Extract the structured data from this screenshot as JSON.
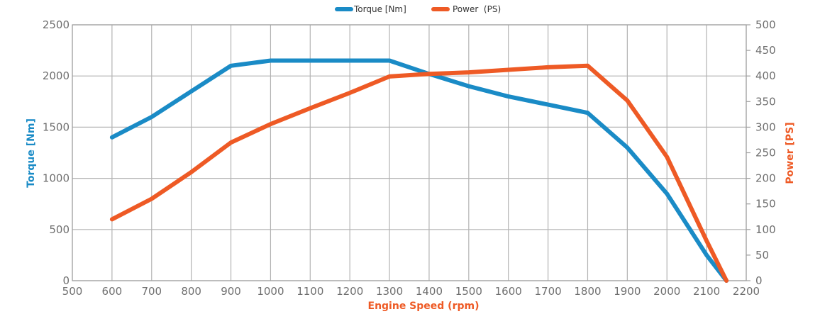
{
  "chart_data": {
    "type": "line",
    "title": "",
    "xlabel": "Engine Speed (rpm)",
    "ylabel": "Torque [Nm]",
    "y2label": "Power [PS]",
    "xlim": [
      500,
      2200
    ],
    "ylim": [
      0,
      2500
    ],
    "y2lim": [
      0,
      500
    ],
    "x_ticks": [
      500,
      600,
      700,
      800,
      900,
      1000,
      1100,
      1200,
      1300,
      1400,
      1500,
      1600,
      1700,
      1800,
      1900,
      2000,
      2100,
      2200
    ],
    "y_ticks": [
      0,
      500,
      1000,
      1500,
      2000,
      2500
    ],
    "y2_ticks": [
      0,
      50,
      100,
      150,
      200,
      250,
      300,
      350,
      400,
      450,
      500
    ],
    "grid": true,
    "legend_position": "top-center",
    "colors": {
      "torque": "#1a8bc6",
      "power": "#ee5a25",
      "xlabel": "#ee5a25"
    },
    "series": [
      {
        "name": "Torque [Nm]",
        "axis": "left",
        "color": "#1a8bc6",
        "x": [
          600,
          700,
          800,
          900,
          1000,
          1100,
          1200,
          1300,
          1400,
          1500,
          1600,
          1700,
          1800,
          1900,
          2000,
          2100,
          2150
        ],
        "y": [
          1400,
          1600,
          1850,
          2100,
          2150,
          2150,
          2150,
          2150,
          2020,
          1900,
          1800,
          1720,
          1640,
          1300,
          850,
          250,
          0
        ]
      },
      {
        "name": "Power  (PS)",
        "axis": "right",
        "color": "#ee5a25",
        "x": [
          600,
          700,
          800,
          900,
          1000,
          1100,
          1200,
          1300,
          1400,
          1500,
          1600,
          1700,
          1800,
          1900,
          2000,
          2100,
          2150
        ],
        "y": [
          120,
          160,
          212,
          270,
          306,
          337,
          367,
          399,
          404,
          407,
          412,
          417,
          420,
          352,
          242,
          78,
          0
        ]
      }
    ]
  }
}
